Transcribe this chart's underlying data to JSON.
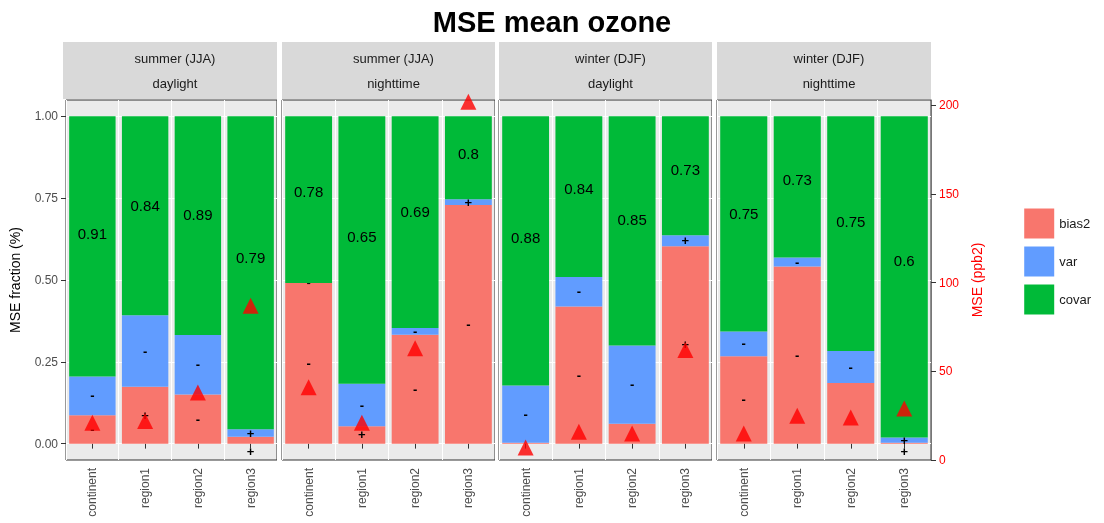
{
  "chart_data": [
    {
      "type": "bar",
      "stacked": true,
      "title": "summer (JJA)",
      "subtitle": "daylight",
      "ylabel": "MSE fraction (%)",
      "categories": [
        "continent",
        "region1",
        "region2",
        "region3"
      ],
      "annotations": [
        "MSE mean ozone",
        "0.91",
        "0.84",
        "0.89",
        "0.79"
      ],
      "series": [
        {
          "color": "#f8766d",
          "values": [
            0.087,
            0.174,
            0.15,
            0.021
          ],
          "value_labels": [
            "-",
            "+",
            "-",
            "+"
          ]
        },
        {
          "color": "#619cff",
          "values": [
            0.118,
            0.218,
            0.182,
            0.023
          ],
          "value_labels": [
            "-",
            "-",
            "-",
            "+"
          ]
        },
        {
          "color": "#00ba38",
          "values": [
            0.795,
            0.608,
            0.668,
            0.956
          ]
        },
        {
          "type": "scatter",
          "axis": "y2",
          "color": "#ff0000",
          "marker": "triangle",
          "values": [
            21,
            22,
            38,
            87
          ]
        }
      ],
      "ylim": [
        -0.05,
        1.05
      ],
      "yticks": [
        {
          "value": 0,
          "label": "0.00"
        },
        {
          "value": 0.25,
          "label": "0.25"
        },
        {
          "value": 0.5,
          "label": "0.50"
        },
        {
          "value": 0.75,
          "label": "0.75"
        },
        {
          "value": 1,
          "label": "1.00"
        }
      ],
      "y2lim": [
        0,
        203
      ],
      "grid": true,
      "legend": false,
      "tick_labels": "x y"
    },
    {
      "type": "bar",
      "stacked": true,
      "title": "summer (JJA)",
      "subtitle": "nighttime",
      "categories": [
        "continent",
        "region1",
        "region2",
        "region3"
      ],
      "annotations": [
        "0.78",
        "0.65",
        "0.69",
        "0.8",
        "-"
      ],
      "series": [
        {
          "color": "#f8766d",
          "values": [
            0.491,
            0.053,
            0.333,
            0.729
          ],
          "value_labels": [
            "-",
            "+",
            "-",
            "-"
          ]
        },
        {
          "color": "#619cff",
          "values": [
            0,
            0.13,
            0.02,
            0.018
          ],
          "value_labels": [
            null,
            "-",
            "-",
            "+"
          ]
        },
        {
          "color": "#00ba38",
          "values": [
            0.509,
            0.817,
            0.647,
            0.253
          ]
        },
        {
          "type": "scatter",
          "axis": "y2",
          "color": "#ff0000",
          "marker": "triangle",
          "values": [
            41,
            21,
            63,
            202
          ]
        }
      ],
      "ylim": [
        -0.05,
        1.05
      ],
      "y2lim": [
        0,
        203
      ],
      "grid": true,
      "legend": false,
      "tick_labels": "x"
    },
    {
      "type": "bar",
      "stacked": true,
      "title": "winter (DJF)",
      "subtitle": "daylight",
      "categories": [
        "continent",
        "region1",
        "region2",
        "region3"
      ],
      "annotations": [
        "0.88",
        "0.84",
        "0.85",
        "0.73"
      ],
      "series": [
        {
          "color": "#f8766d",
          "values": [
            0.003,
            0.419,
            0.061,
            0.603
          ],
          "value_labels": [
            null,
            "-",
            null,
            "+"
          ]
        },
        {
          "color": "#619cff",
          "values": [
            0.175,
            0.09,
            0.239,
            0.034
          ],
          "value_labels": [
            "-",
            "-",
            "-",
            "+"
          ]
        },
        {
          "color": "#00ba38",
          "values": [
            0.822,
            0.491,
            0.7,
            0.363
          ]
        },
        {
          "type": "scatter",
          "axis": "y2",
          "color": "#ff0000",
          "marker": "triangle",
          "values": [
            7,
            16,
            15,
            62
          ]
        }
      ],
      "ylim": [
        -0.05,
        1.05
      ],
      "y2lim": [
        0,
        203
      ],
      "grid": true,
      "legend": false,
      "tick_labels": "x"
    },
    {
      "type": "bar",
      "stacked": true,
      "title": "winter (DJF)",
      "subtitle": "nighttime",
      "y2label": "MSE (ppb2)",
      "categories": [
        "continent",
        "region1",
        "region2",
        "region3"
      ],
      "annotations": [
        "0.75",
        "0.73",
        "0.75",
        "0.6"
      ],
      "series": [
        {
          "name": "bias2",
          "color": "#f8766d",
          "values": [
            0.267,
            0.541,
            0.185,
            0.003
          ],
          "value_labels": [
            "-",
            "-",
            null,
            "+"
          ]
        },
        {
          "name": "var",
          "color": "#619cff",
          "values": [
            0.076,
            0.028,
            0.098,
            0.016
          ],
          "value_labels": [
            "-",
            "-",
            "-",
            "+"
          ]
        },
        {
          "name": "covar",
          "color": "#00ba38",
          "values": [
            0.657,
            0.431,
            0.717,
            0.981
          ]
        },
        {
          "type": "scatter",
          "axis": "y2",
          "color": "#ff0000",
          "marker": "triangle",
          "values": [
            15,
            25,
            24,
            29
          ]
        }
      ],
      "ylim": [
        -0.05,
        1.05
      ],
      "y2lim": [
        0,
        203
      ],
      "y2ticks": [
        0,
        50,
        100,
        150,
        200
      ],
      "grid": true,
      "legend": "right",
      "tick_labels": "x y2"
    }
  ]
}
